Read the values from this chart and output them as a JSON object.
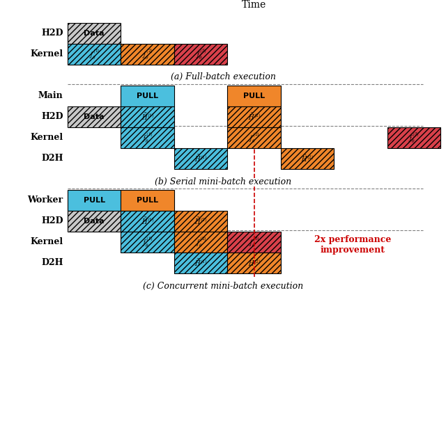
{
  "colors": {
    "blue": "#4BBFDE",
    "orange": "#F0862A",
    "red": "#D9404A",
    "gray": "#C8C8C8",
    "white": "#FFFFFF",
    "black": "#000000",
    "dashed_red": "#CC0000"
  },
  "title_time": "Time",
  "section_labels_a": [
    "H2D",
    "Kernel"
  ],
  "section_labels_b": [
    "Main",
    "H2D",
    "Kernel",
    "D2H"
  ],
  "section_labels_c": [
    "Worker",
    "H2D",
    "Kernel",
    "D2H"
  ],
  "caption_a": "(a) Full-batch execution",
  "caption_b": "(b) Serial mini-batch execution",
  "caption_c": "(c) Concurrent mini-batch execution",
  "annotation_2x": "2x performance\nimprovement"
}
